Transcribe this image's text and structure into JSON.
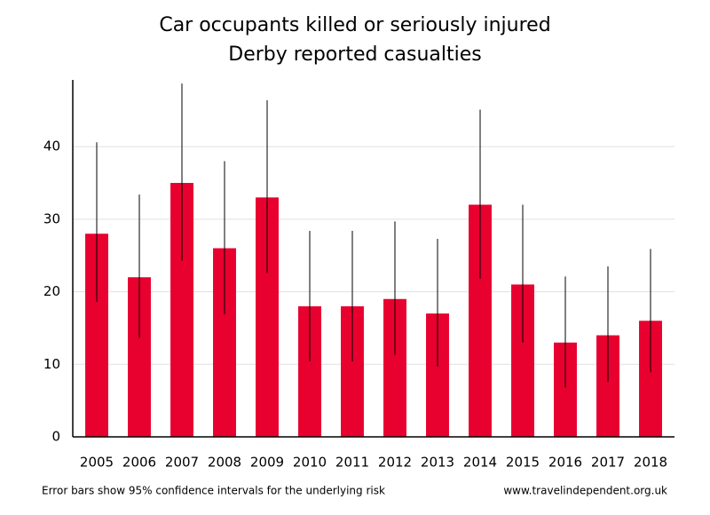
{
  "chart_data": {
    "type": "bar",
    "title": "Car occupants killed or seriously injured",
    "subtitle": "Derby reported casualties",
    "categories": [
      "2005",
      "2006",
      "2007",
      "2008",
      "2009",
      "2010",
      "2011",
      "2012",
      "2013",
      "2014",
      "2015",
      "2016",
      "2017",
      "2018"
    ],
    "values": [
      28,
      22,
      35,
      26,
      33,
      18,
      18,
      19,
      17,
      32,
      21,
      13,
      14,
      16
    ],
    "ci_low": [
      18.6,
      13.6,
      24.3,
      16.9,
      22.6,
      10.4,
      10.4,
      11.3,
      9.7,
      21.8,
      13.0,
      6.8,
      7.6,
      8.9
    ],
    "ci_high": [
      40.6,
      33.4,
      48.7,
      38.0,
      46.4,
      28.4,
      28.4,
      29.7,
      27.3,
      45.1,
      32.0,
      22.1,
      23.5,
      25.9
    ],
    "color": "#e8002f",
    "ylim": [
      0,
      49.2
    ],
    "yticks": [
      0,
      10,
      20,
      30,
      40
    ],
    "grid": true,
    "note": "Error bars show 95% confidence intervals for the underlying risk",
    "source": "www.travelindependent.org.uk"
  }
}
